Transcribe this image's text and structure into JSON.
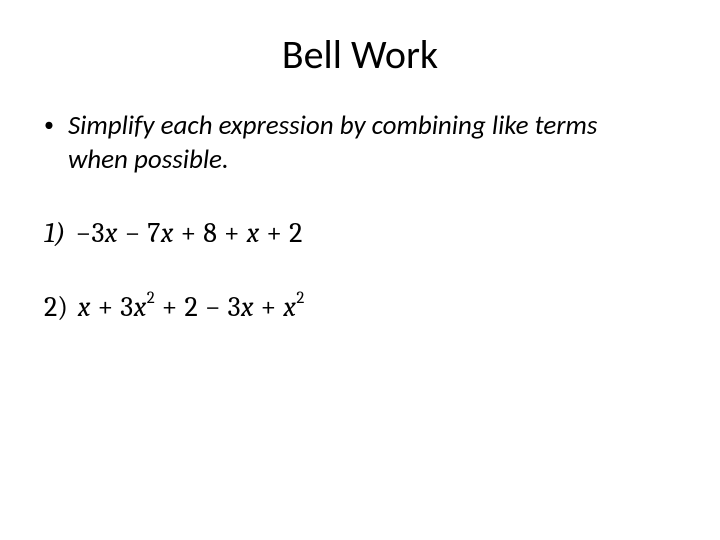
{
  "title": "Bell Work",
  "instruction": "Simplify each expression by combining like terms when possible.",
  "problems": [
    {
      "label": "1)",
      "label_italic": true,
      "tokens": [
        {
          "t": "op",
          "v": "−"
        },
        {
          "t": "num",
          "v": "3"
        },
        {
          "t": "var",
          "v": "x"
        },
        {
          "t": "sp",
          "v": " "
        },
        {
          "t": "op",
          "v": "−"
        },
        {
          "t": "sp",
          "v": " "
        },
        {
          "t": "num",
          "v": "7"
        },
        {
          "t": "var",
          "v": "x"
        },
        {
          "t": "sp",
          "v": " "
        },
        {
          "t": "op",
          "v": "+"
        },
        {
          "t": "sp",
          "v": " "
        },
        {
          "t": "num",
          "v": "8"
        },
        {
          "t": "sp",
          "v": " "
        },
        {
          "t": "op",
          "v": "+"
        },
        {
          "t": "sp",
          "v": " "
        },
        {
          "t": "var",
          "v": "x"
        },
        {
          "t": "sp",
          "v": " "
        },
        {
          "t": "op",
          "v": "+"
        },
        {
          "t": "sp",
          "v": " "
        },
        {
          "t": "num",
          "v": "2"
        }
      ]
    },
    {
      "label": "2)",
      "label_italic": false,
      "tokens": [
        {
          "t": "sp",
          "v": " "
        },
        {
          "t": "var",
          "v": "x"
        },
        {
          "t": "sp",
          "v": " "
        },
        {
          "t": "op",
          "v": "+"
        },
        {
          "t": "sp",
          "v": " "
        },
        {
          "t": "num",
          "v": "3"
        },
        {
          "t": "var",
          "v": "x"
        },
        {
          "t": "sup",
          "v": "2"
        },
        {
          "t": "sp",
          "v": " "
        },
        {
          "t": "op",
          "v": "+"
        },
        {
          "t": "sp",
          "v": " "
        },
        {
          "t": "num",
          "v": "2"
        },
        {
          "t": "sp",
          "v": " "
        },
        {
          "t": "op",
          "v": "−"
        },
        {
          "t": "sp",
          "v": " "
        },
        {
          "t": "num",
          "v": "3"
        },
        {
          "t": "var",
          "v": "x"
        },
        {
          "t": "sp",
          "v": " "
        },
        {
          "t": "op",
          "v": "+"
        },
        {
          "t": "sp",
          "v": "  "
        },
        {
          "t": "var",
          "v": "x"
        },
        {
          "t": "sup",
          "v": "2"
        }
      ]
    }
  ],
  "style": {
    "background_color": "#ffffff",
    "text_color": "#000000",
    "title_fontsize": 40,
    "instruction_fontsize": 27,
    "expression_fontsize": 28,
    "title_font": "Calibri",
    "math_font": "Cambria"
  }
}
